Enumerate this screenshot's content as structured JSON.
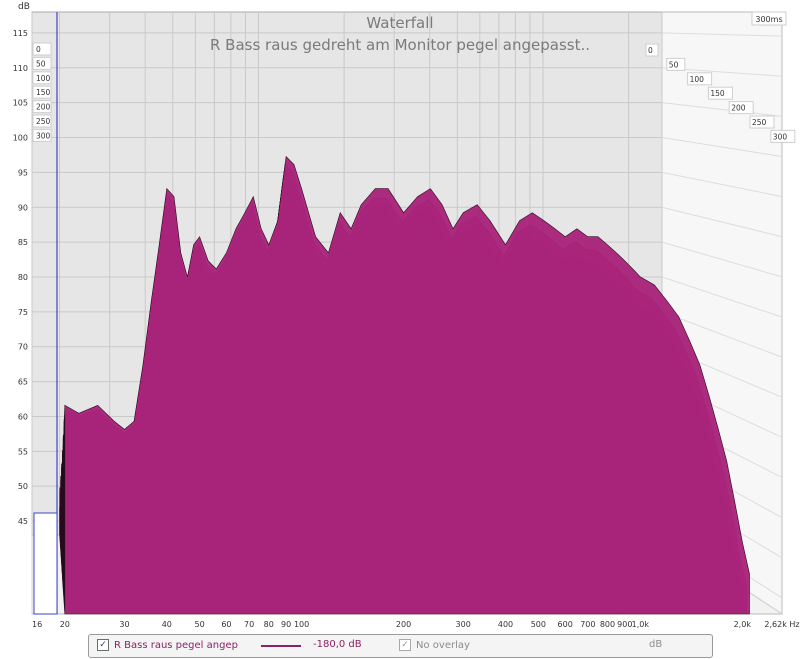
{
  "chart_data": {
    "type": "area",
    "title": "Waterfall",
    "subtitle": "R Bass raus gedreht am Monitor pegel angepasst..",
    "ylabel": "dB",
    "xlabel": "Hz",
    "x_ticks": [
      "16",
      "20",
      "30",
      "40",
      "50",
      "60",
      "70",
      "80",
      "90",
      "100",
      "200",
      "300",
      "400",
      "500",
      "600",
      "700",
      "800",
      "900",
      "1,0k",
      "2,0k",
      "2,62k Hz"
    ],
    "y_ticks": [
      "115",
      "110",
      "105",
      "100",
      "95",
      "90",
      "85",
      "80",
      "75",
      "70",
      "65",
      "60",
      "55",
      "50",
      "45"
    ],
    "ylim": [
      43,
      118
    ],
    "xlim_hz": [
      16,
      2620
    ],
    "time_ticks_ms": [
      "0",
      "50",
      "100",
      "150",
      "200",
      "250",
      "300"
    ],
    "time_max_label": "300ms",
    "grid": true,
    "series": [
      {
        "name": "R Bass raus pegel angep",
        "color": "#a8247a",
        "freq_hz": [
          20,
          22,
          25,
          28,
          30,
          32,
          34,
          36,
          38,
          40,
          42,
          44,
          46,
          48,
          50,
          53,
          56,
          60,
          64,
          68,
          72,
          76,
          80,
          85,
          90,
          95,
          100,
          110,
          120,
          130,
          140,
          150,
          165,
          180,
          200,
          220,
          240,
          260,
          280,
          300,
          330,
          360,
          400,
          440,
          480,
          520,
          560,
          600,
          650,
          700,
          750,
          800,
          850,
          900,
          950,
          1000,
          1100,
          1200,
          1300,
          1400,
          1500,
          1600,
          1700,
          1800,
          1900,
          2000,
          2100
        ],
        "first_slice_db": [
          69,
          68,
          69,
          67,
          66,
          67,
          74,
          82,
          89,
          96,
          95,
          88,
          85,
          89,
          90,
          87,
          86,
          88,
          91,
          93,
          95,
          91,
          89,
          92,
          100,
          99,
          96,
          90,
          88,
          93,
          91,
          94,
          96,
          96,
          93,
          95,
          96,
          94,
          91,
          93,
          94,
          92,
          89,
          92,
          93,
          92,
          91,
          90,
          91,
          90,
          90,
          89,
          88,
          87,
          86,
          85,
          84,
          82,
          80,
          77,
          74,
          70,
          66,
          62,
          57,
          52,
          48
        ]
      }
    ],
    "legend": {
      "series_label": "R Bass raus pegel angep",
      "offset_label": "-180,0 dB",
      "overlay_label": "No overlay",
      "unit_label": "dB"
    }
  }
}
